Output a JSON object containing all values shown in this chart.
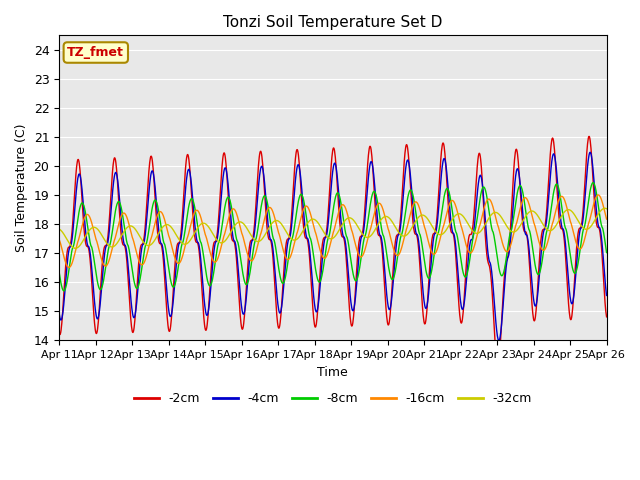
{
  "title": "Tonzi Soil Temperature Set D",
  "xlabel": "Time",
  "ylabel": "Soil Temperature (C)",
  "ylim": [
    14.0,
    24.5
  ],
  "yticks": [
    14.0,
    15.0,
    16.0,
    17.0,
    18.0,
    19.0,
    20.0,
    21.0,
    22.0,
    23.0,
    24.0
  ],
  "bg_color": "#e8e8e8",
  "legend_labels": [
    "-2cm",
    "-4cm",
    "-8cm",
    "-16cm",
    "-32cm"
  ],
  "legend_colors": [
    "#dd0000",
    "#0000cc",
    "#00cc00",
    "#ff8800",
    "#cccc00"
  ],
  "annotation_text": "TZ_fmet",
  "annotation_bg": "#ffffcc",
  "annotation_border": "#aa8800",
  "annotation_text_color": "#cc0000",
  "n_points": 1440,
  "days": 15
}
